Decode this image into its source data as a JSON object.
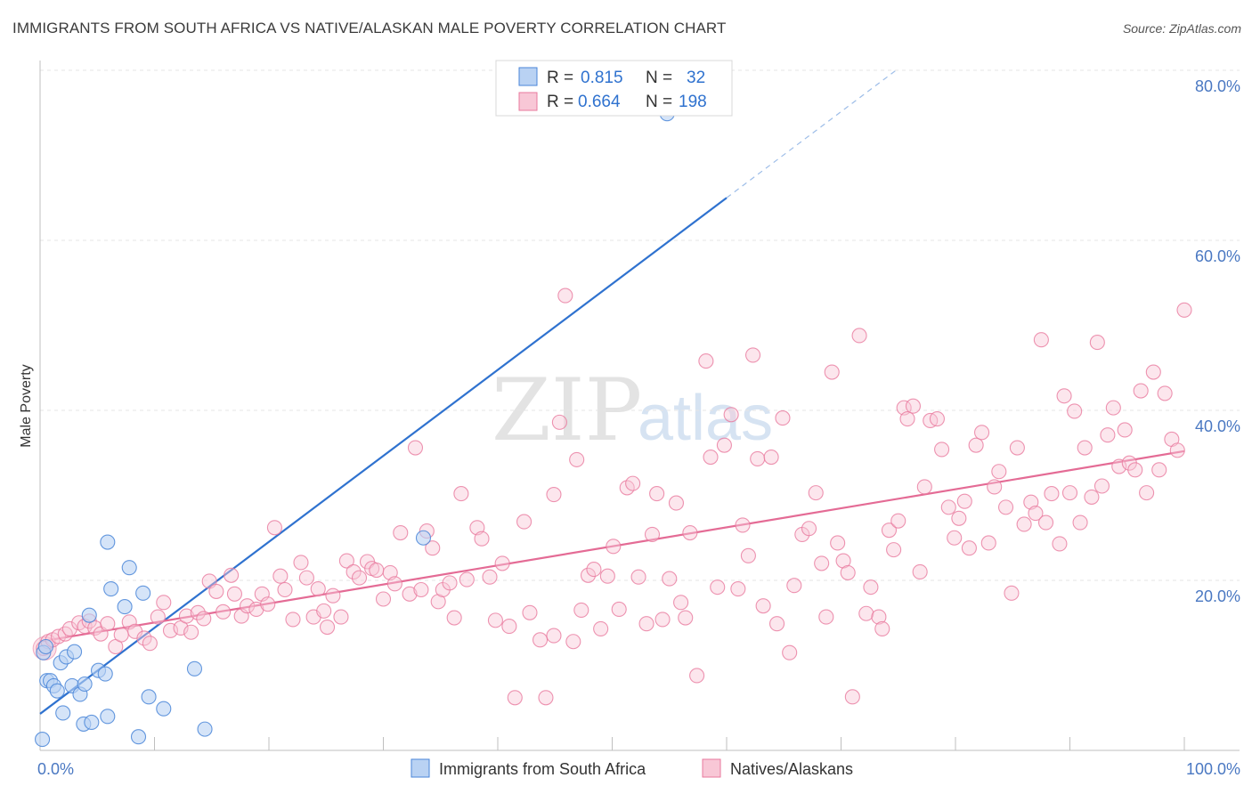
{
  "title": "IMMIGRANTS FROM SOUTH AFRICA VS NATIVE/ALASKAN MALE POVERTY CORRELATION CHART",
  "source": "Source: ZipAtlas.com",
  "watermark": {
    "zip": "ZIP",
    "atlas": "atlas"
  },
  "colors": {
    "blue": "#4a86d8",
    "blue_fill": "#b9d2f3",
    "blue_line": "#2f72cf",
    "pink": "#e8799d",
    "pink_fill": "#f8c7d6",
    "pink_line": "#e46b95",
    "tick_text": "#4a78c2",
    "grid": "#e6e6e6"
  },
  "legend": {
    "row1": {
      "r_label": "R =",
      "r_value": "0.815",
      "n_label": "N =",
      "n_value": "32"
    },
    "row2": {
      "r_label": "R =",
      "r_value": "0.664",
      "n_label": "N =",
      "n_value": "198"
    }
  },
  "bottom_legend": [
    "Immigrants from South Africa",
    "Natives/Alaskans"
  ],
  "chart_data": {
    "type": "scatter",
    "xlabel": "",
    "ylabel": "Male Poverty",
    "xlim": [
      0,
      100
    ],
    "ylim": [
      0,
      80
    ],
    "x_tick_labels": [
      "0.0%",
      "100.0%"
    ],
    "y_ticks": [
      20,
      40,
      60,
      80
    ],
    "y_tick_labels": [
      "20.0%",
      "40.0%",
      "60.0%",
      "80.0%"
    ],
    "grid": true,
    "legend_position": "top-center",
    "series": [
      {
        "name": "Immigrants from South Africa",
        "color": "#4a86d8",
        "trend": {
          "x0": 0,
          "y0": 4.3,
          "x1": 60,
          "y1": 65.0,
          "dashed_to_x": 75,
          "dashed_to_y": 80.2
        },
        "points": [
          [
            0.3,
            11.5
          ],
          [
            0.5,
            12.2
          ],
          [
            0.6,
            8.2
          ],
          [
            0.9,
            8.2
          ],
          [
            1.2,
            7.6
          ],
          [
            1.5,
            7.0
          ],
          [
            1.8,
            10.3
          ],
          [
            2.0,
            4.4
          ],
          [
            2.3,
            11.0
          ],
          [
            2.8,
            7.6
          ],
          [
            3.0,
            11.6
          ],
          [
            3.5,
            6.6
          ],
          [
            3.8,
            3.1
          ],
          [
            3.9,
            7.8
          ],
          [
            4.3,
            15.9
          ],
          [
            4.5,
            3.3
          ],
          [
            5.1,
            9.4
          ],
          [
            5.7,
            9.0
          ],
          [
            5.9,
            4.0
          ],
          [
            5.9,
            24.5
          ],
          [
            6.2,
            19.0
          ],
          [
            7.4,
            16.9
          ],
          [
            7.8,
            21.5
          ],
          [
            8.6,
            1.6
          ],
          [
            9.0,
            18.5
          ],
          [
            9.5,
            6.3
          ],
          [
            10.8,
            4.9
          ],
          [
            13.5,
            9.6
          ],
          [
            14.4,
            2.5
          ],
          [
            33.5,
            25.0
          ],
          [
            54.8,
            74.9
          ],
          [
            0.2,
            1.3
          ]
        ]
      },
      {
        "name": "Natives/Alaskans",
        "color": "#e8799d",
        "trend": {
          "x0": 0,
          "y0": 12.8,
          "x1": 100,
          "y1": 35.2
        },
        "points": [
          [
            0.3,
            12.0
          ],
          [
            0.7,
            12.8
          ],
          [
            1.1,
            13.0
          ],
          [
            1.6,
            13.4
          ],
          [
            2.2,
            13.7
          ],
          [
            2.6,
            14.3
          ],
          [
            3.4,
            15.0
          ],
          [
            3.9,
            14.6
          ],
          [
            4.3,
            15.2
          ],
          [
            4.8,
            14.4
          ],
          [
            5.3,
            13.7
          ],
          [
            5.9,
            14.9
          ],
          [
            6.6,
            12.2
          ],
          [
            7.1,
            13.6
          ],
          [
            7.8,
            15.1
          ],
          [
            8.3,
            14.0
          ],
          [
            9.1,
            13.2
          ],
          [
            9.6,
            12.6
          ],
          [
            10.3,
            15.7
          ],
          [
            10.8,
            17.4
          ],
          [
            11.4,
            14.1
          ],
          [
            12.3,
            14.4
          ],
          [
            12.8,
            15.8
          ],
          [
            13.2,
            13.9
          ],
          [
            13.8,
            16.2
          ],
          [
            14.3,
            15.5
          ],
          [
            14.8,
            19.9
          ],
          [
            15.4,
            18.7
          ],
          [
            16.0,
            16.3
          ],
          [
            16.7,
            20.6
          ],
          [
            17.0,
            18.4
          ],
          [
            17.6,
            15.8
          ],
          [
            18.1,
            17.0
          ],
          [
            18.9,
            16.6
          ],
          [
            19.4,
            18.4
          ],
          [
            19.9,
            17.2
          ],
          [
            20.5,
            26.2
          ],
          [
            21.0,
            20.5
          ],
          [
            21.4,
            18.9
          ],
          [
            22.1,
            15.4
          ],
          [
            22.8,
            22.1
          ],
          [
            23.3,
            20.3
          ],
          [
            23.9,
            15.7
          ],
          [
            24.3,
            19.0
          ],
          [
            24.8,
            16.4
          ],
          [
            25.1,
            14.5
          ],
          [
            25.6,
            18.2
          ],
          [
            26.3,
            15.7
          ],
          [
            26.8,
            22.3
          ],
          [
            27.4,
            21.0
          ],
          [
            27.9,
            20.3
          ],
          [
            28.6,
            22.2
          ],
          [
            29.0,
            21.4
          ],
          [
            29.4,
            21.2
          ],
          [
            30.0,
            17.8
          ],
          [
            30.6,
            20.9
          ],
          [
            31.0,
            19.6
          ],
          [
            31.5,
            25.6
          ],
          [
            32.3,
            18.4
          ],
          [
            32.8,
            35.6
          ],
          [
            33.3,
            18.9
          ],
          [
            33.8,
            25.8
          ],
          [
            34.3,
            23.8
          ],
          [
            34.8,
            17.5
          ],
          [
            35.2,
            18.9
          ],
          [
            35.8,
            19.7
          ],
          [
            36.2,
            15.6
          ],
          [
            36.8,
            30.2
          ],
          [
            37.3,
            20.1
          ],
          [
            38.2,
            26.2
          ],
          [
            38.6,
            24.9
          ],
          [
            39.3,
            20.4
          ],
          [
            39.8,
            15.3
          ],
          [
            40.4,
            22.0
          ],
          [
            41.0,
            14.6
          ],
          [
            41.5,
            6.2
          ],
          [
            42.3,
            26.9
          ],
          [
            42.8,
            16.2
          ],
          [
            43.7,
            13.0
          ],
          [
            44.2,
            6.2
          ],
          [
            44.9,
            13.5
          ],
          [
            45.4,
            38.6
          ],
          [
            45.9,
            53.5
          ],
          [
            46.6,
            12.8
          ],
          [
            46.9,
            34.2
          ],
          [
            47.3,
            16.5
          ],
          [
            47.9,
            20.6
          ],
          [
            48.4,
            21.3
          ],
          [
            49.0,
            14.3
          ],
          [
            49.6,
            20.5
          ],
          [
            50.1,
            24.0
          ],
          [
            50.6,
            16.6
          ],
          [
            51.3,
            30.9
          ],
          [
            51.8,
            31.4
          ],
          [
            52.3,
            20.4
          ],
          [
            53.0,
            14.9
          ],
          [
            53.5,
            25.4
          ],
          [
            53.9,
            30.2
          ],
          [
            54.4,
            15.4
          ],
          [
            55.0,
            20.2
          ],
          [
            55.6,
            29.1
          ],
          [
            56.0,
            17.4
          ],
          [
            56.4,
            15.6
          ],
          [
            56.8,
            25.6
          ],
          [
            57.4,
            8.8
          ],
          [
            58.2,
            45.8
          ],
          [
            58.6,
            34.5
          ],
          [
            59.2,
            19.2
          ],
          [
            59.8,
            35.9
          ],
          [
            60.4,
            39.5
          ],
          [
            61.0,
            19.0
          ],
          [
            61.4,
            26.5
          ],
          [
            61.9,
            22.9
          ],
          [
            62.3,
            46.5
          ],
          [
            62.7,
            34.3
          ],
          [
            63.2,
            17.0
          ],
          [
            63.9,
            34.5
          ],
          [
            64.4,
            14.9
          ],
          [
            64.9,
            39.1
          ],
          [
            65.5,
            11.5
          ],
          [
            65.9,
            19.4
          ],
          [
            66.6,
            25.4
          ],
          [
            67.2,
            26.1
          ],
          [
            67.8,
            30.3
          ],
          [
            68.3,
            22.0
          ],
          [
            68.7,
            15.7
          ],
          [
            69.2,
            44.5
          ],
          [
            69.7,
            24.4
          ],
          [
            70.2,
            22.3
          ],
          [
            70.6,
            20.9
          ],
          [
            71.0,
            6.3
          ],
          [
            71.6,
            48.8
          ],
          [
            72.2,
            16.1
          ],
          [
            72.6,
            19.2
          ],
          [
            73.3,
            15.7
          ],
          [
            73.6,
            14.3
          ],
          [
            74.2,
            25.9
          ],
          [
            74.6,
            23.6
          ],
          [
            75.0,
            27.0
          ],
          [
            75.5,
            40.3
          ],
          [
            75.8,
            39.0
          ],
          [
            76.3,
            40.5
          ],
          [
            76.9,
            21.0
          ],
          [
            77.3,
            31.0
          ],
          [
            77.8,
            38.8
          ],
          [
            78.4,
            39.0
          ],
          [
            78.8,
            35.4
          ],
          [
            79.4,
            28.6
          ],
          [
            79.9,
            25.0
          ],
          [
            80.3,
            27.3
          ],
          [
            80.8,
            29.3
          ],
          [
            81.2,
            23.8
          ],
          [
            81.8,
            35.9
          ],
          [
            82.3,
            37.4
          ],
          [
            82.9,
            24.4
          ],
          [
            83.4,
            31.0
          ],
          [
            83.8,
            32.8
          ],
          [
            84.4,
            28.6
          ],
          [
            84.9,
            18.5
          ],
          [
            85.4,
            35.6
          ],
          [
            86.0,
            26.6
          ],
          [
            86.6,
            29.2
          ],
          [
            87.0,
            27.9
          ],
          [
            87.5,
            48.3
          ],
          [
            87.9,
            26.8
          ],
          [
            88.4,
            30.2
          ],
          [
            89.1,
            24.3
          ],
          [
            89.5,
            41.7
          ],
          [
            90.0,
            30.3
          ],
          [
            90.4,
            39.9
          ],
          [
            90.9,
            26.8
          ],
          [
            91.3,
            35.6
          ],
          [
            91.9,
            29.8
          ],
          [
            92.4,
            48.0
          ],
          [
            92.8,
            31.1
          ],
          [
            93.3,
            37.1
          ],
          [
            93.8,
            40.3
          ],
          [
            94.3,
            33.4
          ],
          [
            94.8,
            37.7
          ],
          [
            95.2,
            33.8
          ],
          [
            95.7,
            33.0
          ],
          [
            96.2,
            42.3
          ],
          [
            96.7,
            30.3
          ],
          [
            97.3,
            44.5
          ],
          [
            97.8,
            33.0
          ],
          [
            98.3,
            42.0
          ],
          [
            98.9,
            36.6
          ],
          [
            99.4,
            35.3
          ],
          [
            100.0,
            51.8
          ],
          [
            44.9,
            30.1
          ]
        ]
      }
    ]
  }
}
